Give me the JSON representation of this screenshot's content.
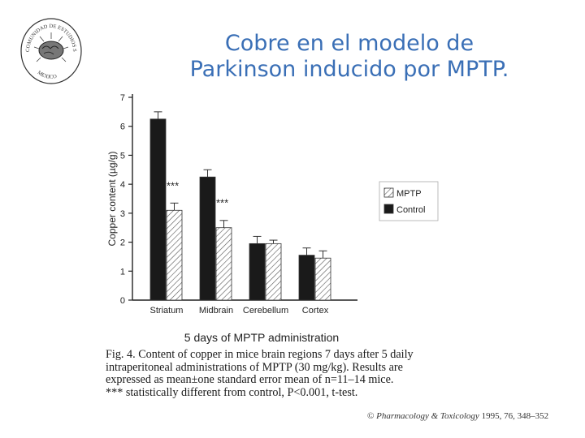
{
  "slide": {
    "title_line1": "Cobre en el modelo de",
    "title_line2": "Parkinson inducido por MPTP."
  },
  "logo": {
    "text_top": "COMUNIDAD DE ESTUDIOS SOBRE",
    "text_bottom": "MEXICO"
  },
  "chart_data": {
    "type": "bar",
    "categories": [
      "Striatum",
      "Midbrain",
      "Cerebellum",
      "Cortex"
    ],
    "series": [
      {
        "name": "Control",
        "values": [
          6.25,
          4.25,
          1.95,
          1.55
        ],
        "errors": [
          0.25,
          0.25,
          0.25,
          0.25
        ],
        "pattern": "solid",
        "color": "#1a1a1a"
      },
      {
        "name": "MPTP",
        "values": [
          3.1,
          2.5,
          1.95,
          1.45
        ],
        "errors": [
          0.25,
          0.25,
          0.12,
          0.25
        ],
        "pattern": "hatched",
        "color": "#ffffff"
      }
    ],
    "annotations": [
      {
        "category": "Striatum",
        "text": "***"
      },
      {
        "category": "Midbrain",
        "text": "***"
      }
    ],
    "ylabel": "Copper content (µg/g)",
    "xlabel": "5 days of MPTP administration",
    "ylim": [
      0,
      7
    ],
    "yticks": [
      0,
      1,
      2,
      3,
      4,
      5,
      6,
      7
    ],
    "legend_position": "right"
  },
  "caption": {
    "line1": "Fig. 4. Content of copper in mice brain regions 7 days after 5 daily",
    "line2": "intraperitoneal administrations of MPTP (30 mg/kg). Results are",
    "line3": "expressed as mean±one standard error mean of n=11–14 mice.",
    "line4": "*** statistically different from control, P<0.001, t-test."
  },
  "citation": {
    "prefix": "©",
    "journal": "Pharmacology & Toxicology",
    "details": "1995, 76, 348–352"
  }
}
